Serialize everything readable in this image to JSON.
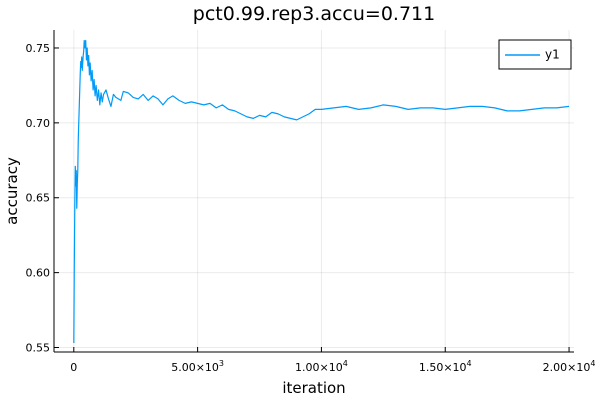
{
  "chart_data": {
    "type": "line",
    "title": "pct0.99.rep3.accu=0.711",
    "xlabel": "iteration",
    "ylabel": "accuracy",
    "xlim": [
      -800,
      20200
    ],
    "ylim": [
      0.547,
      0.762
    ],
    "grid": true,
    "legend_position": "top-right",
    "x_ticks": [
      {
        "value": 0,
        "mantissa": "0",
        "exponent": ""
      },
      {
        "value": 5000,
        "mantissa": "5.00×10",
        "exponent": "3"
      },
      {
        "value": 10000,
        "mantissa": "1.00×10",
        "exponent": "4"
      },
      {
        "value": 15000,
        "mantissa": "1.50×10",
        "exponent": "4"
      },
      {
        "value": 20000,
        "mantissa": "2.00×10",
        "exponent": "4"
      }
    ],
    "y_ticks": [
      {
        "value": 0.55,
        "label": "0.55"
      },
      {
        "value": 0.6,
        "label": "0.60"
      },
      {
        "value": 0.65,
        "label": "0.65"
      },
      {
        "value": 0.7,
        "label": "0.70"
      },
      {
        "value": 0.75,
        "label": "0.75"
      }
    ],
    "series": [
      {
        "name": "y1",
        "color": "#009af9",
        "x": [
          1,
          20,
          40,
          60,
          80,
          100,
          120,
          140,
          160,
          180,
          200,
          220,
          240,
          260,
          280,
          300,
          320,
          340,
          360,
          380,
          400,
          420,
          450,
          480,
          510,
          540,
          570,
          600,
          630,
          660,
          700,
          740,
          780,
          820,
          860,
          900,
          950,
          1000,
          1050,
          1100,
          1150,
          1200,
          1300,
          1400,
          1500,
          1600,
          1700,
          1800,
          1900,
          2000,
          2200,
          2400,
          2600,
          2800,
          3000,
          3200,
          3400,
          3600,
          3800,
          4000,
          4250,
          4500,
          4750,
          5000,
          5250,
          5500,
          5750,
          6000,
          6250,
          6500,
          6750,
          7000,
          7250,
          7500,
          7750,
          8000,
          8250,
          8500,
          8750,
          9000,
          9250,
          9500,
          9750,
          10000,
          10500,
          11000,
          11500,
          12000,
          12500,
          13000,
          13500,
          14000,
          14500,
          15000,
          15500,
          16000,
          16500,
          17000,
          17500,
          18000,
          18500,
          19000,
          19500,
          20000
        ],
        "y": [
          0.553,
          0.605,
          0.645,
          0.671,
          0.658,
          0.668,
          0.643,
          0.659,
          0.668,
          0.689,
          0.7,
          0.711,
          0.722,
          0.733,
          0.741,
          0.737,
          0.744,
          0.735,
          0.74,
          0.745,
          0.748,
          0.755,
          0.75,
          0.755,
          0.742,
          0.75,
          0.738,
          0.745,
          0.732,
          0.74,
          0.728,
          0.735,
          0.722,
          0.729,
          0.718,
          0.725,
          0.715,
          0.722,
          0.712,
          0.72,
          0.714,
          0.719,
          0.722,
          0.716,
          0.711,
          0.719,
          0.717,
          0.716,
          0.715,
          0.721,
          0.72,
          0.717,
          0.716,
          0.719,
          0.715,
          0.718,
          0.716,
          0.712,
          0.716,
          0.718,
          0.715,
          0.713,
          0.714,
          0.713,
          0.712,
          0.713,
          0.71,
          0.712,
          0.709,
          0.708,
          0.706,
          0.704,
          0.703,
          0.705,
          0.704,
          0.707,
          0.706,
          0.704,
          0.703,
          0.702,
          0.704,
          0.706,
          0.709,
          0.709,
          0.71,
          0.711,
          0.709,
          0.71,
          0.712,
          0.711,
          0.709,
          0.71,
          0.71,
          0.709,
          0.71,
          0.711,
          0.711,
          0.71,
          0.708,
          0.708,
          0.709,
          0.71,
          0.71,
          0.711
        ]
      }
    ]
  }
}
